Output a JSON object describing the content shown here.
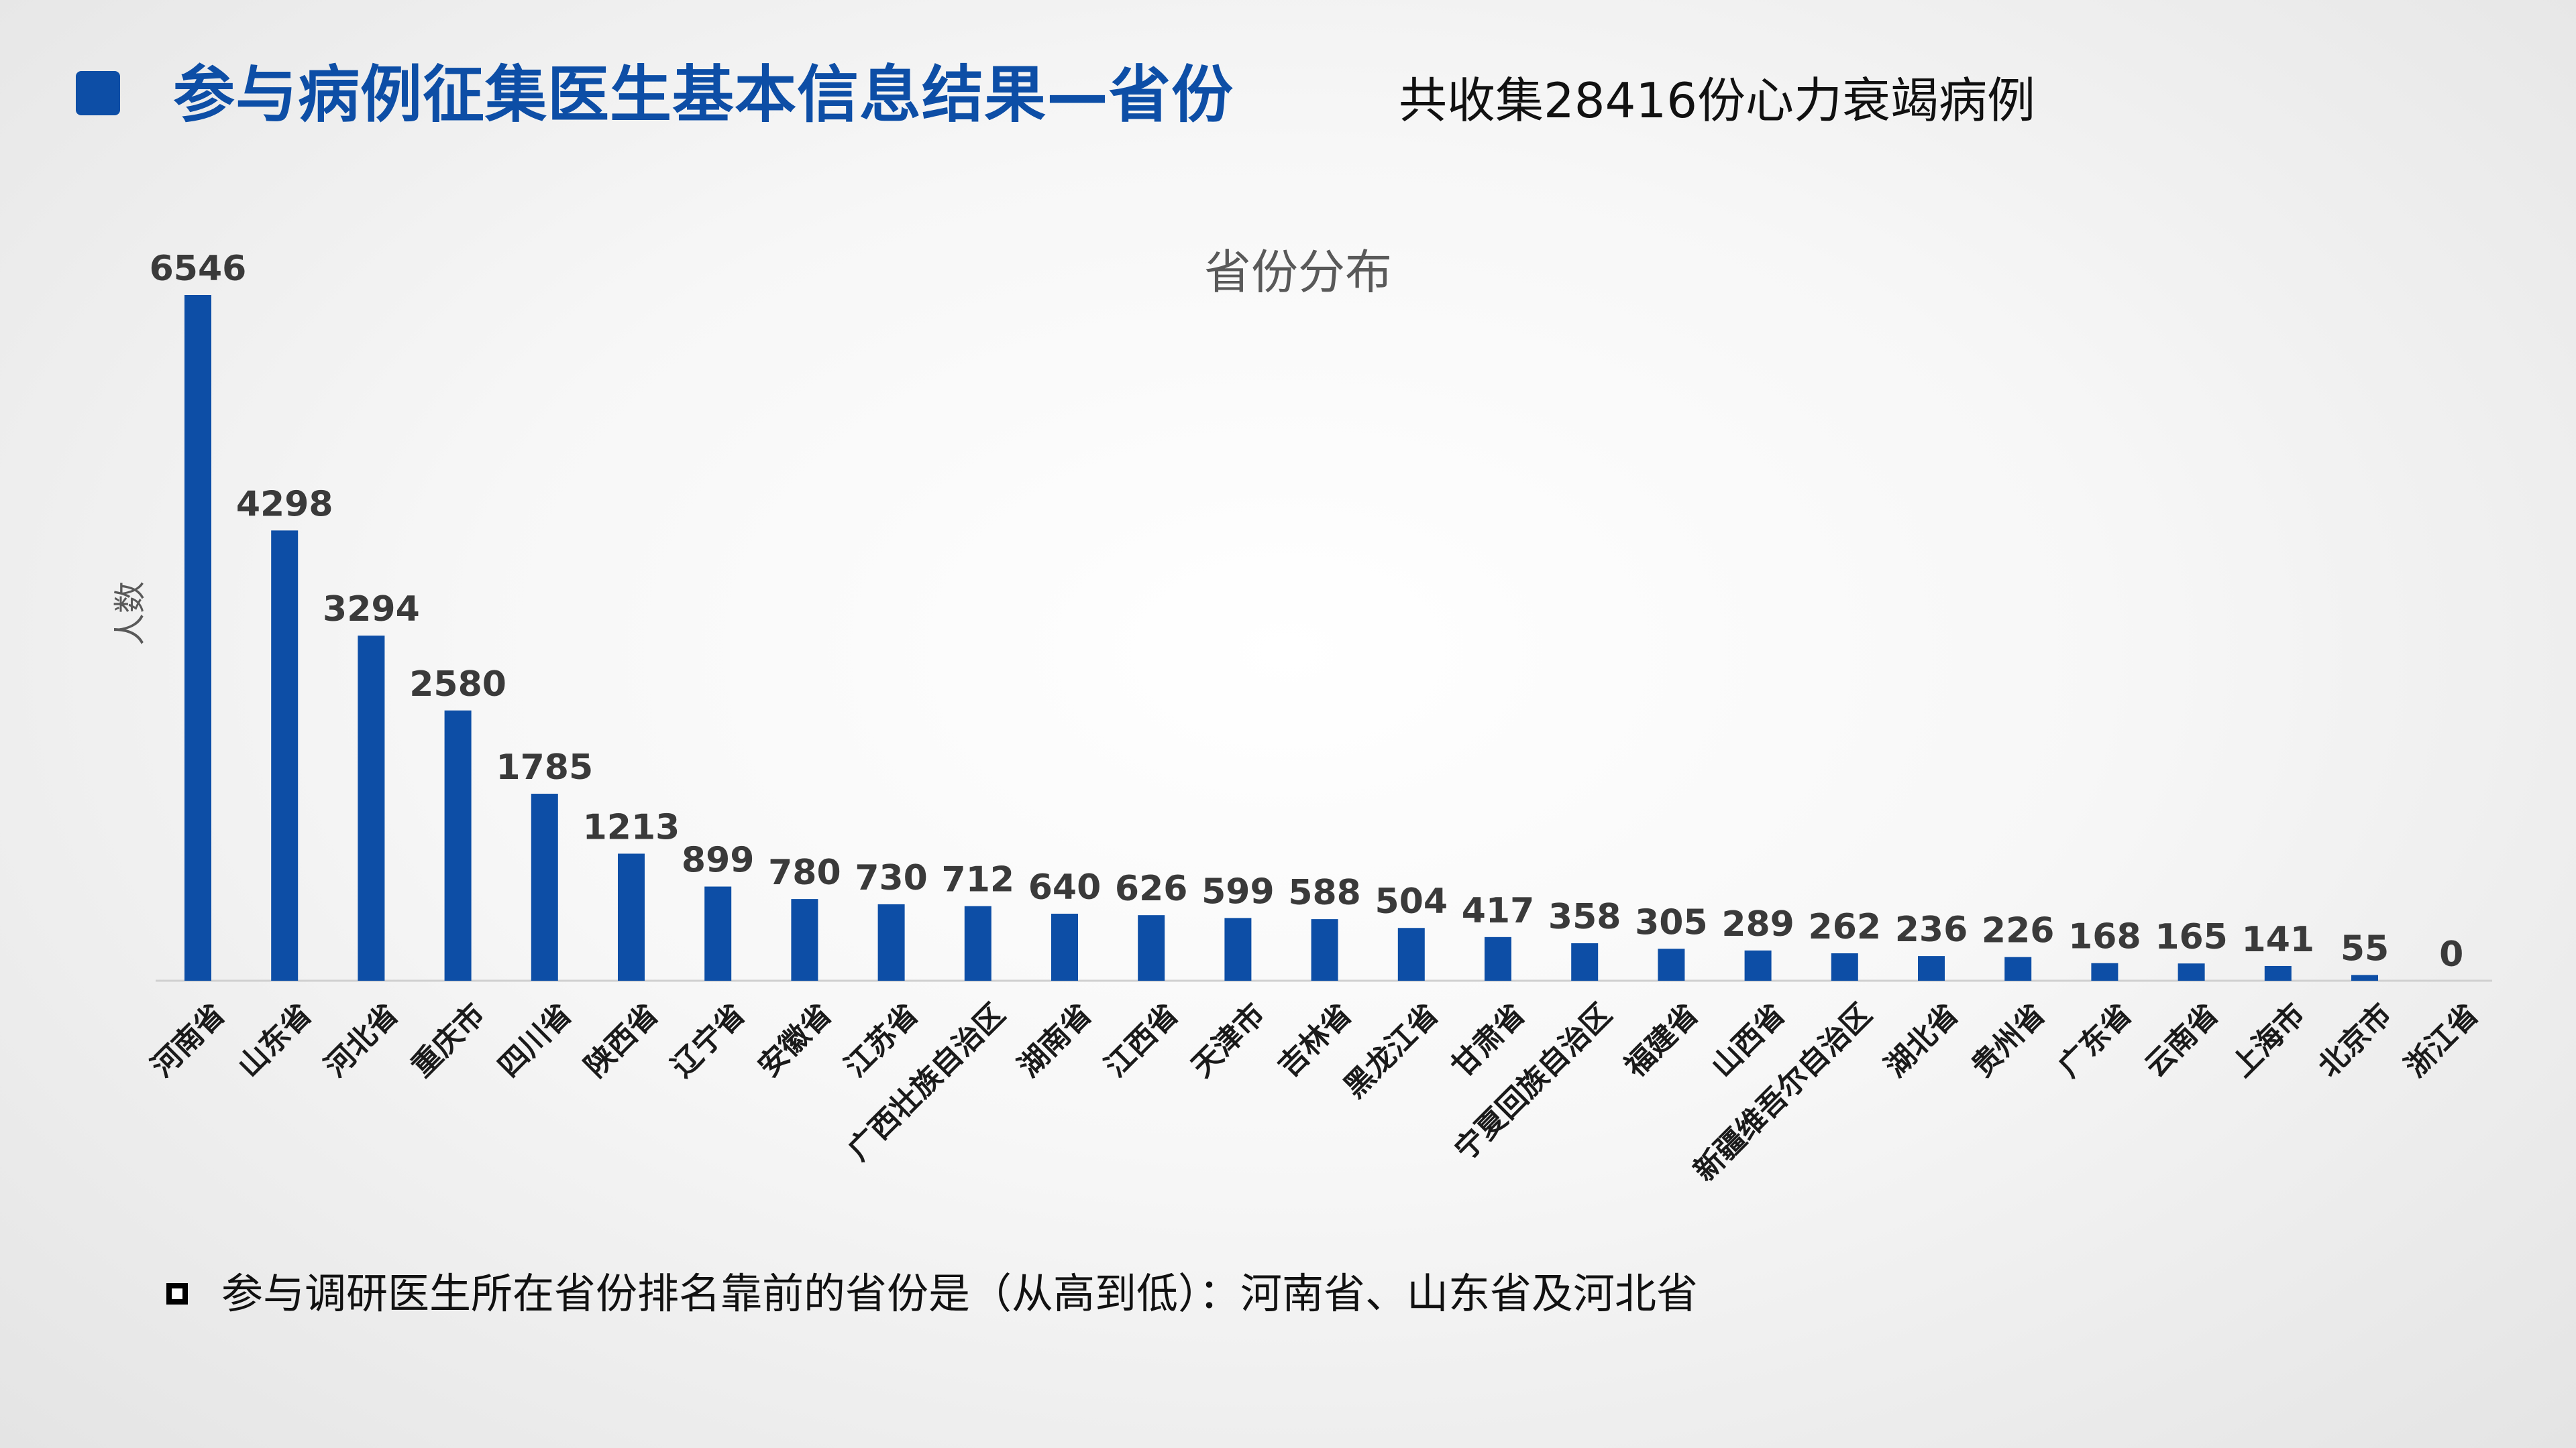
{
  "header": {
    "title": "参与病例征集医生基本信息结果—省份",
    "subtitle": "共收集28416份心力衰竭病例"
  },
  "colors": {
    "accent": "#0D4EA6",
    "bar": "#0D4EA6"
  },
  "chart_data": {
    "type": "bar",
    "title": "省份分布",
    "xlabel": "",
    "ylabel": "人数",
    "ylim": [
      0,
      6546
    ],
    "grid": false,
    "legend": "none",
    "categories": [
      "河南省",
      "山东省",
      "河北省",
      "重庆市",
      "四川省",
      "陕西省",
      "辽宁省",
      "安徽省",
      "江苏省",
      "广西壮族自治区",
      "湖南省",
      "江西省",
      "天津市",
      "吉林省",
      "黑龙江省",
      "甘肃省",
      "宁夏回族自治区",
      "福建省",
      "山西省",
      "新疆维吾尔自治区",
      "湖北省",
      "贵州省",
      "广东省",
      "云南省",
      "上海市",
      "北京市",
      "浙江省"
    ],
    "values": [
      6546,
      4298,
      3294,
      2580,
      1785,
      1213,
      899,
      780,
      730,
      712,
      640,
      626,
      599,
      588,
      504,
      417,
      358,
      305,
      289,
      262,
      236,
      226,
      168,
      165,
      141,
      55,
      0
    ],
    "value_labels": [
      "6546",
      "4298",
      "3294",
      "2580",
      "1785",
      "1213",
      "899",
      "780",
      "730",
      "712",
      "640",
      "626",
      "599",
      "588",
      "504",
      "417",
      "358",
      "305",
      "289",
      "262",
      "236",
      "226",
      "168",
      "165",
      "141",
      "55",
      "0"
    ]
  },
  "note": {
    "text": "参与调研医生所在省份排名靠前的省份是（从高到低）：河南省、山东省及河北省"
  }
}
